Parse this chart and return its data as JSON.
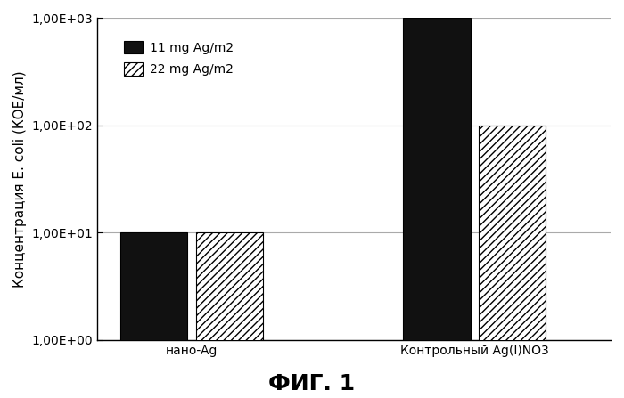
{
  "categories": [
    "нано-Ag",
    "Контрольный Ag(I)NO3"
  ],
  "series": [
    {
      "label": "11 mg Ag/m2",
      "values": [
        10.0,
        1000.0
      ],
      "color": "#111111",
      "hatch": null,
      "edgecolor": "#000000"
    },
    {
      "label": "22 mg Ag/m2",
      "values": [
        10.0,
        100.0
      ],
      "color": "#ffffff",
      "hatch": "////",
      "edgecolor": "#000000"
    }
  ],
  "ylabel": "Концентрация E. coli (КОЕ/мл)",
  "xlabel": "",
  "title": "",
  "figcaption": "ФИГ. 1",
  "ylim_log": [
    1.0,
    1000.0
  ],
  "bar_width": 0.32,
  "bar_gap": 0.04,
  "group_centers": [
    0.55,
    1.9
  ],
  "xlim": [
    0.1,
    2.55
  ],
  "background_color": "#ffffff",
  "grid_color": "#aaaaaa",
  "ylabel_fontsize": 11,
  "tick_fontsize": 10,
  "legend_fontsize": 10,
  "caption_fontsize": 18,
  "yticks": [
    1.0,
    10.0,
    100.0,
    1000.0
  ],
  "ytick_labels": [
    "1,00E+00",
    "1,00E+01",
    "1,00E+02",
    "1,00E+03"
  ]
}
